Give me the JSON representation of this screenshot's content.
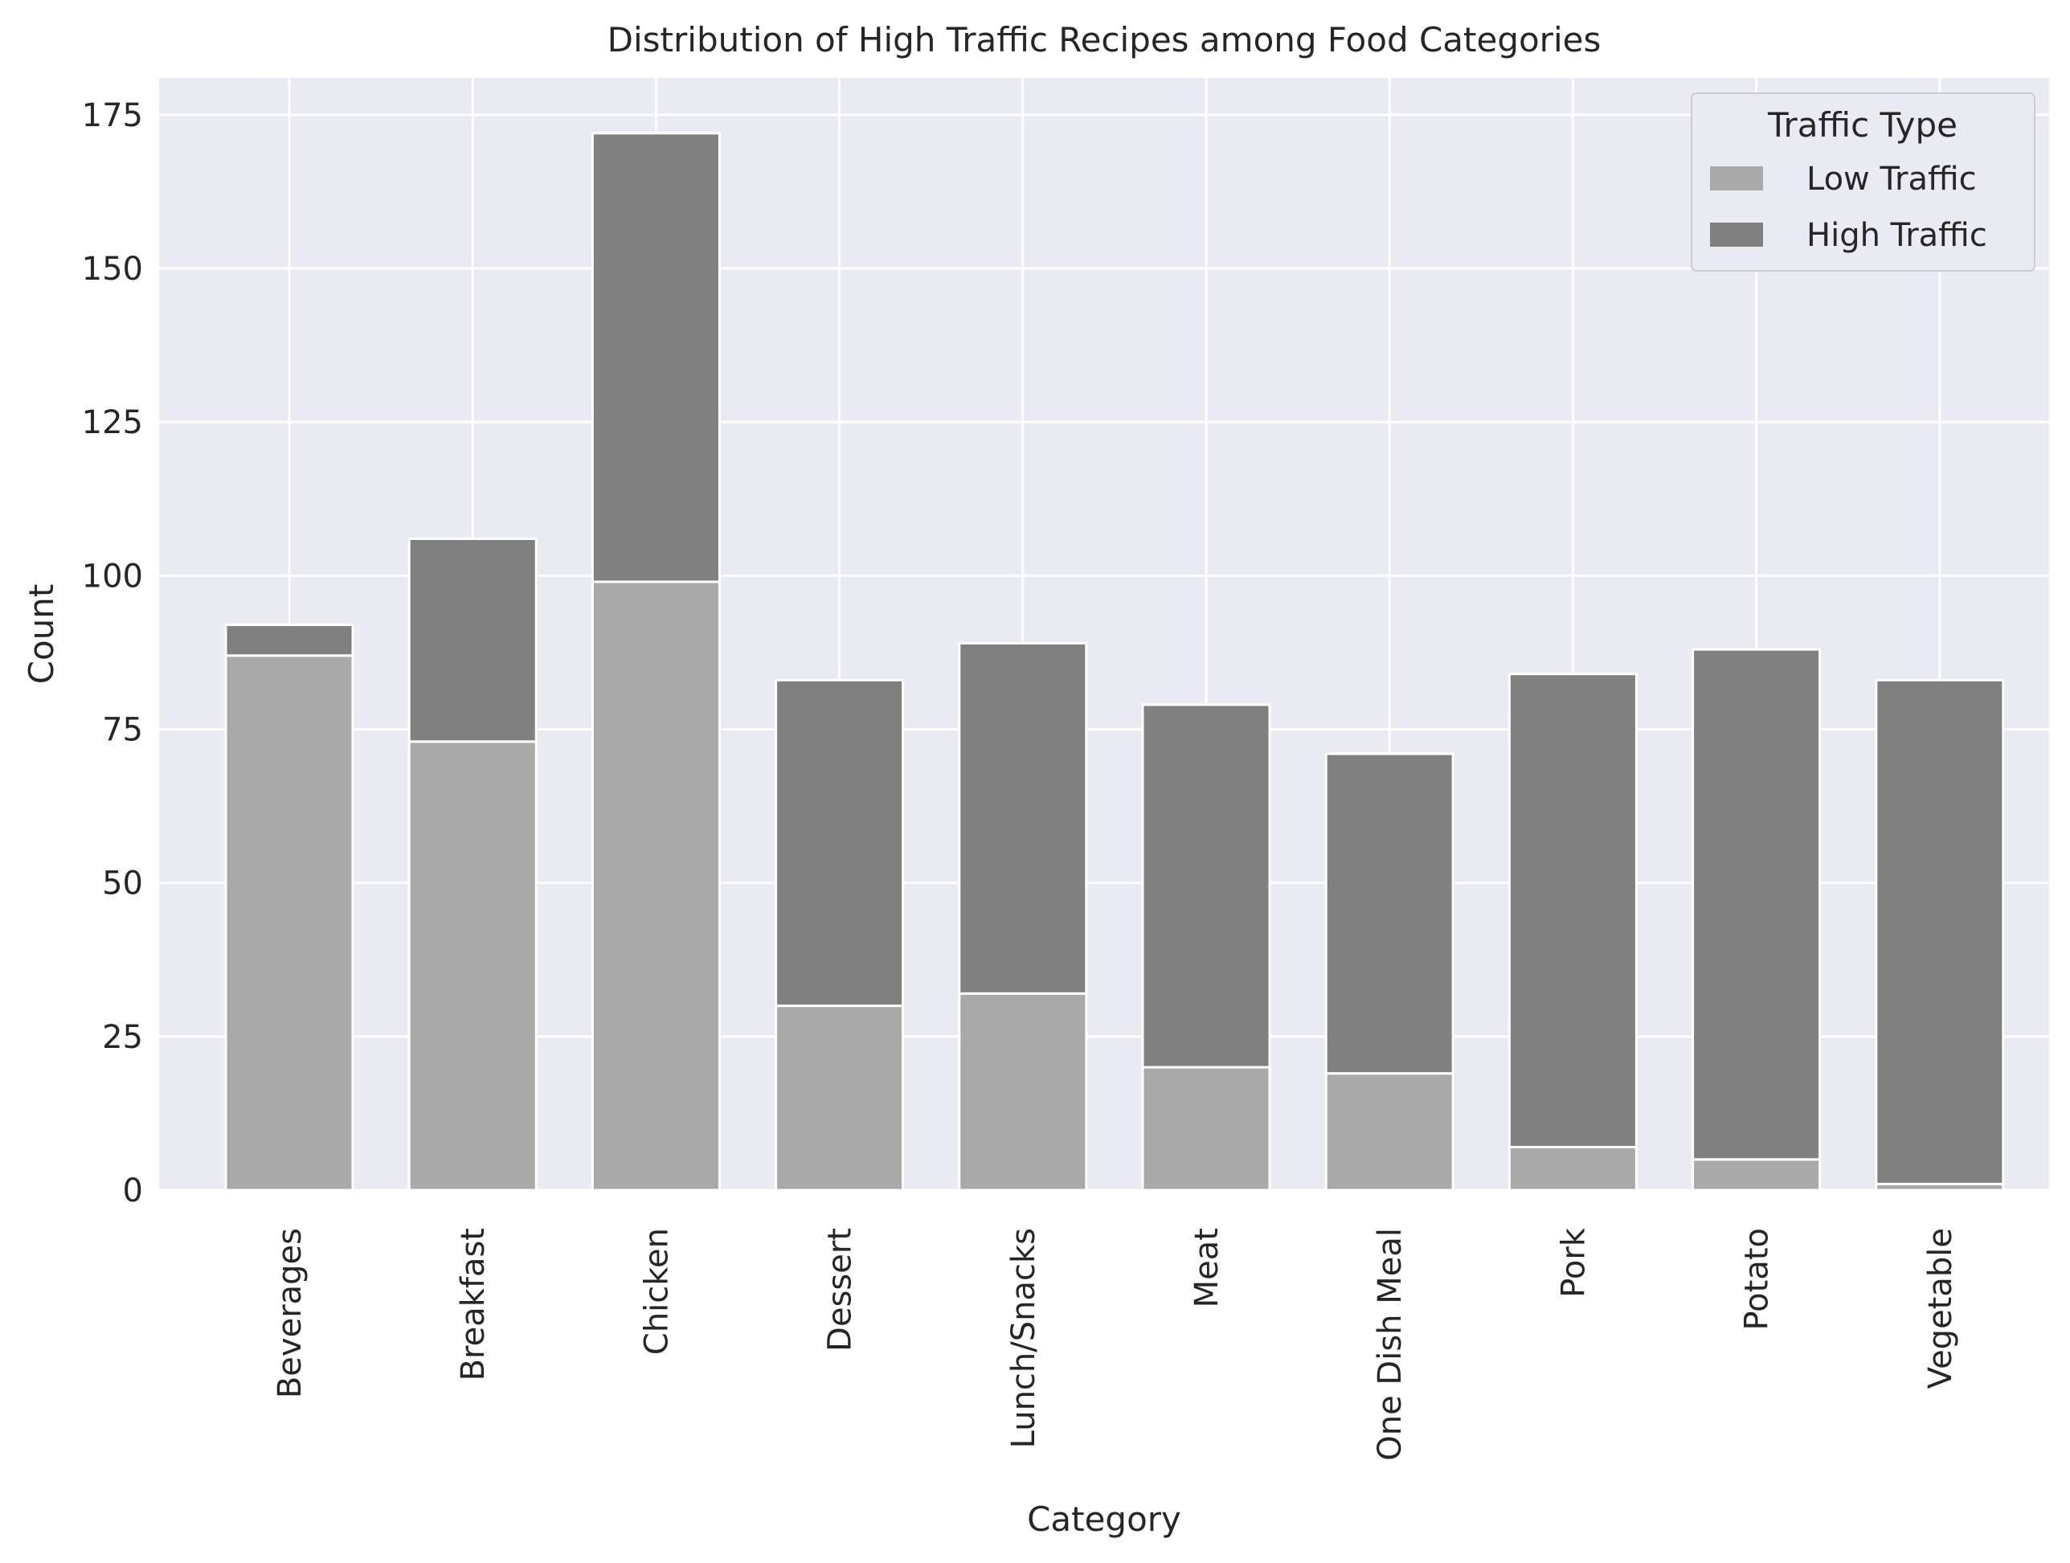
{
  "chart_data": {
    "type": "bar",
    "stacked": true,
    "title": "Distribution of High Traffic Recipes among Food Categories",
    "xlabel": "Category",
    "ylabel": "Count",
    "ylim": [
      0,
      181
    ],
    "yticks": [
      0,
      25,
      50,
      75,
      100,
      125,
      150,
      175
    ],
    "grid": true,
    "categories": [
      "Beverages",
      "Breakfast",
      "Chicken",
      "Dessert",
      "Lunch/Snacks",
      "Meat",
      "One Dish Meal",
      "Pork",
      "Potato",
      "Vegetable"
    ],
    "series": [
      {
        "name": "Low Traffic",
        "color": "#a9a9a9",
        "values": [
          87,
          73,
          99,
          30,
          32,
          20,
          19,
          7,
          5,
          1
        ]
      },
      {
        "name": "High Traffic",
        "color": "#808080",
        "values": [
          5,
          33,
          73,
          53,
          57,
          59,
          52,
          77,
          83,
          82
        ]
      }
    ],
    "legend": {
      "title": "Traffic Type",
      "placement": "top-right"
    }
  }
}
